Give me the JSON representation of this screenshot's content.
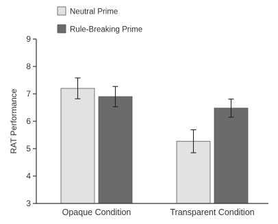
{
  "chart_data": {
    "type": "bar",
    "categories": [
      "Opaque Condition",
      "Transparent Condition"
    ],
    "series": [
      {
        "name": "Neutral Prime",
        "values": [
          7.2,
          5.27
        ],
        "errors": [
          0.38,
          0.42
        ],
        "color": "#e2e2e2"
      },
      {
        "name": "Rule-Breaking Prime",
        "values": [
          6.9,
          6.48
        ],
        "errors": [
          0.37,
          0.33
        ],
        "color": "#6b6b6b"
      }
    ],
    "ylabel": "RAT Performance",
    "ylim": [
      3,
      9
    ],
    "yticks": [
      3,
      4,
      5,
      6,
      7,
      8,
      9
    ],
    "legend_position": "top-left",
    "grid": false
  }
}
